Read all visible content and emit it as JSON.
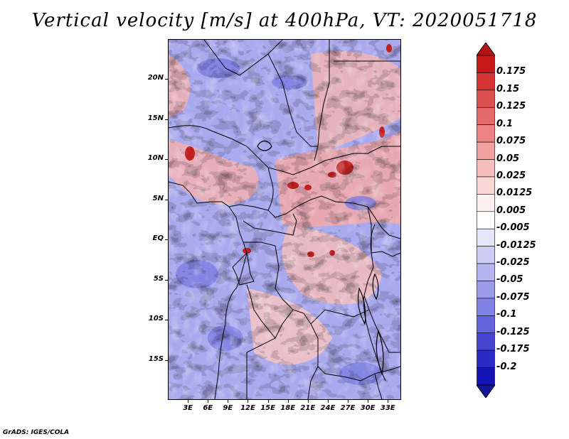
{
  "title": "Vertical velocity [m/s] at 400hPa, VT: 2020051718",
  "credit": "GrADS: IGES/COLA",
  "map": {
    "lon_range": [
      0,
      35
    ],
    "lat_range": [
      -20,
      25
    ],
    "lat_labels": [
      "20N",
      "15N",
      "10N",
      "5N",
      "EQ",
      "5S",
      "10S",
      "15S"
    ],
    "lat_values": [
      20,
      15,
      10,
      5,
      0,
      -5,
      -10,
      -15
    ],
    "lon_labels": [
      "3E",
      "6E",
      "9E",
      "12E",
      "15E",
      "18E",
      "21E",
      "24E",
      "27E",
      "30E",
      "33E"
    ],
    "lon_values": [
      3,
      6,
      9,
      12,
      15,
      18,
      21,
      24,
      27,
      30,
      33
    ]
  },
  "colorbar": {
    "labels": [
      "0.175",
      "0.15",
      "0.125",
      "0.1",
      "0.075",
      "0.05",
      "0.025",
      "0.0125",
      "0.005",
      "-0.005",
      "-0.0125",
      "-0.025",
      "-0.05",
      "-0.075",
      "-0.1",
      "-0.125",
      "-0.175",
      "-0.2"
    ],
    "colors": [
      "#c81818",
      "#d43434",
      "#dc5050",
      "#e46a6a",
      "#ec8484",
      "#f2a0a0",
      "#f7bcbc",
      "#fad6d6",
      "#fdf0f0",
      "#ffffff",
      "#e6e6fa",
      "#cdcdf5",
      "#b4b4f0",
      "#9b9bea",
      "#8282e4",
      "#6464dc",
      "#4646d2",
      "#2a2ac4",
      "#1414b4"
    ],
    "top_color": "#b41414",
    "bottom_color": "#14149c"
  }
}
